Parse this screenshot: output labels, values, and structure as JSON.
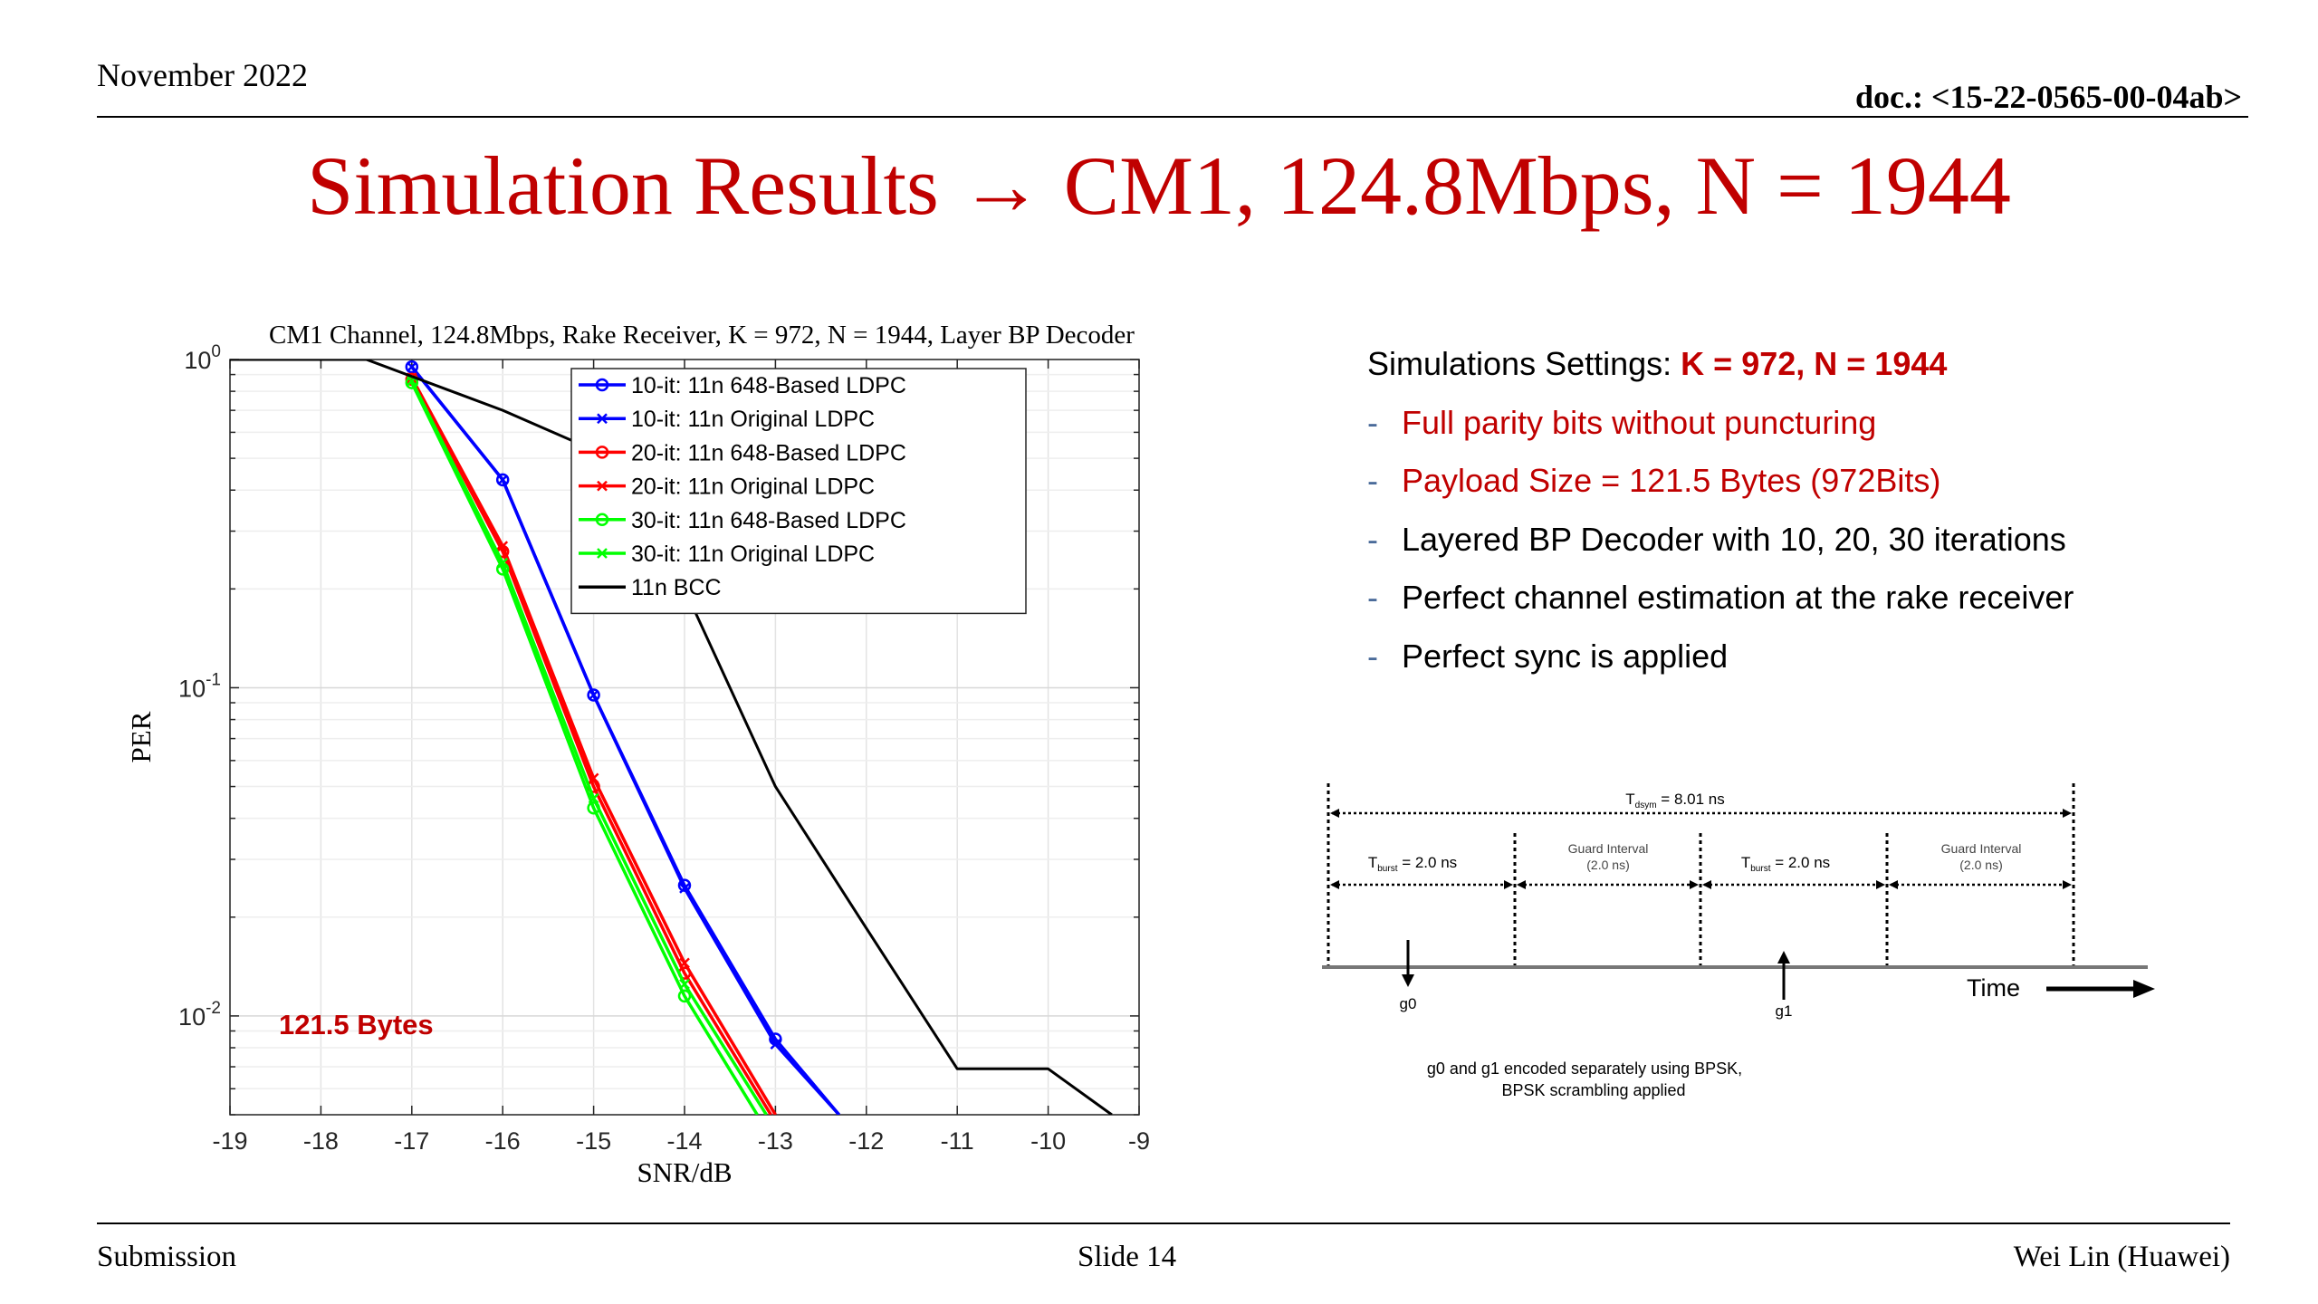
{
  "header": {
    "date": "November 2022",
    "doc": "doc.: <15-22-0565-00-04ab>"
  },
  "title": "Simulation Results → CM1, 124.8Mbps, N = 1944",
  "footer": {
    "left": "Submission",
    "center": "Slide 14",
    "right": "Wei Lin (Huawei)"
  },
  "chart_data": {
    "type": "line",
    "title": "CM1 Channel, 124.8Mbps, Rake Receiver, K = 972, N = 1944, Layer BP Decoder",
    "xlabel": "SNR/dB",
    "ylabel": "PER",
    "xlim": [
      -19,
      -9
    ],
    "ylim": [
      0.005,
      1
    ],
    "yscale": "log",
    "grid": true,
    "legend_position": "top-right",
    "x_ticks": [
      "-19",
      "-18",
      "-17",
      "-16",
      "-15",
      "-14",
      "-13",
      "-12",
      "-11",
      "-10",
      "-9"
    ],
    "y_ticks": [
      {
        "base": "10",
        "exp": "0",
        "value": 1
      },
      {
        "base": "10",
        "exp": "-1",
        "value": 0.1
      },
      {
        "base": "10",
        "exp": "-2",
        "value": 0.01
      }
    ],
    "annotation": "121.5 Bytes",
    "annotation_color": "#c00000",
    "series": [
      {
        "name": "10-it: 11n 648-Based LDPC",
        "color": "#0000ff",
        "marker": "circle",
        "x": [
          -17,
          -16,
          -15,
          -14,
          -13,
          -12.3
        ],
        "y": [
          0.95,
          0.43,
          0.095,
          0.025,
          0.0085,
          0.005
        ]
      },
      {
        "name": "10-it: 11n Original LDPC",
        "color": "#0000ff",
        "marker": "x",
        "x": [
          -17,
          -16,
          -15,
          -14,
          -13,
          -12.3
        ],
        "y": [
          0.95,
          0.43,
          0.095,
          0.0245,
          0.0082,
          0.005
        ]
      },
      {
        "name": "20-it: 11n 648-Based LDPC",
        "color": "#ff0000",
        "marker": "circle",
        "x": [
          -17,
          -16,
          -15,
          -14,
          -13.05
        ],
        "y": [
          0.87,
          0.26,
          0.05,
          0.0135,
          0.005
        ]
      },
      {
        "name": "20-it: 11n Original LDPC",
        "color": "#ff0000",
        "marker": "x",
        "x": [
          -17,
          -16,
          -15,
          -14,
          -13
        ],
        "y": [
          0.88,
          0.27,
          0.053,
          0.0145,
          0.005
        ]
      },
      {
        "name": "30-it: 11n 648-Based LDPC",
        "color": "#00ff00",
        "marker": "circle",
        "x": [
          -17,
          -16,
          -15,
          -14,
          -13.2
        ],
        "y": [
          0.85,
          0.23,
          0.043,
          0.0115,
          0.005
        ]
      },
      {
        "name": "30-it: 11n Original LDPC",
        "color": "#00ff00",
        "marker": "x",
        "x": [
          -17,
          -16,
          -15,
          -14,
          -13.1
        ],
        "y": [
          0.86,
          0.24,
          0.046,
          0.0125,
          0.005
        ]
      },
      {
        "name": "11n BCC",
        "color": "#000000",
        "marker": "none",
        "x": [
          -19,
          -17.5,
          -16,
          -15,
          -14,
          -13,
          -12,
          -11,
          -10,
          -9.3
        ],
        "y": [
          1,
          1,
          0.7,
          0.53,
          0.2,
          0.05,
          0.0185,
          0.0069,
          0.0069,
          0.005
        ]
      }
    ]
  },
  "settings": {
    "heading_label": "Simulations Settings: ",
    "heading_value": "K = 972, N = 1944",
    "bullet": "-",
    "items": [
      {
        "text": "Full parity bits without puncturing",
        "red": true
      },
      {
        "text": "Payload Size = 121.5 Bytes (972Bits)",
        "red": true
      },
      {
        "text": "Layered BP Decoder with 10, 20, 30 iterations",
        "red": false
      },
      {
        "text": "Perfect channel estimation at the rake receiver",
        "red": false
      },
      {
        "text": "Perfect sync is applied",
        "red": false
      }
    ]
  },
  "diagram": {
    "tdsym_prefix": "T",
    "tdsym_sub": "dsym",
    "tdsym_suffix": " = 8.01 ns",
    "tburst_prefix": "T",
    "tburst_sub": "burst",
    "tburst_suffix": " = 2.0 ns",
    "guard_line1": "Guard Interval",
    "guard_line2": "(2.0 ns)",
    "time_label": "Time",
    "g0": "g0",
    "g1": "g1",
    "caption_line1": "g0 and g1 encoded separately using BPSK,",
    "caption_line2": "BPSK scrambling applied"
  }
}
